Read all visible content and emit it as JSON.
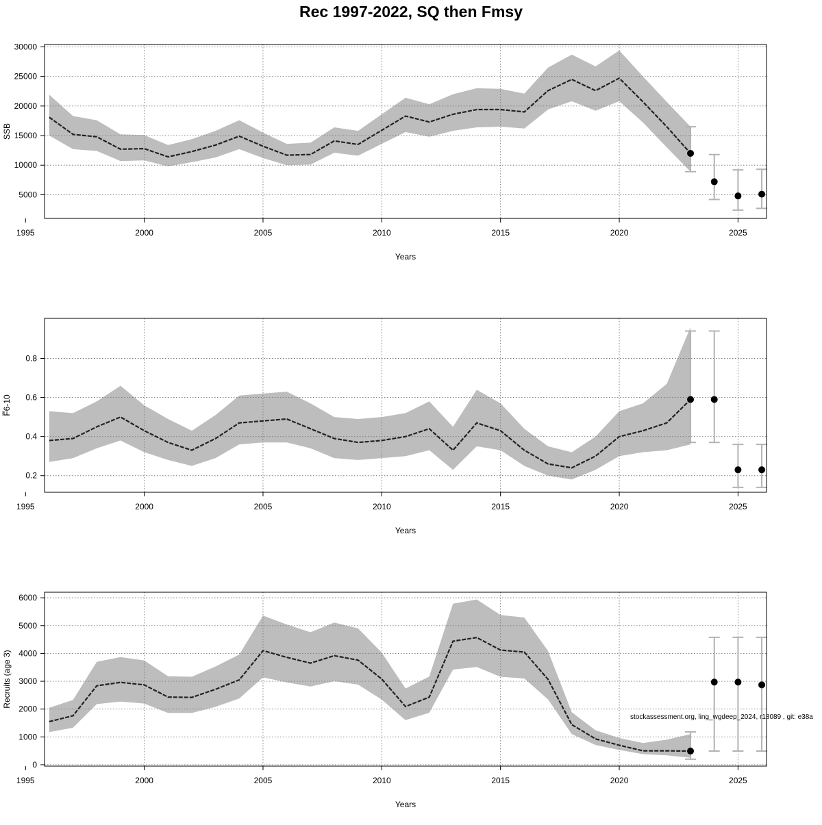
{
  "title": "Rec 1997-2022, SQ then Fmsy",
  "footnote": "stockassessment.org, ling_wgdeep_2024, r18089 , git: e38a",
  "colors": {
    "band": "#bdbdbd",
    "line": "#222222",
    "errorbar": "#b3b3b3",
    "point": "#000000",
    "grid": "#777777"
  },
  "chart_data": [
    {
      "type": "line",
      "ylabel": "SSB",
      "xlabel": "Years",
      "xlim": [
        1995.8,
        2026.2
      ],
      "ylim": [
        1000,
        30400
      ],
      "xticks": [
        1995,
        2000,
        2005,
        2010,
        2015,
        2020,
        2025
      ],
      "yticks": [
        5000,
        10000,
        15000,
        20000,
        25000,
        30000
      ],
      "grid": true,
      "x": [
        1996,
        1997,
        1998,
        1999,
        2000,
        2001,
        2002,
        2003,
        2004,
        2005,
        2006,
        2007,
        2008,
        2009,
        2010,
        2011,
        2012,
        2013,
        2014,
        2015,
        2016,
        2017,
        2018,
        2019,
        2020,
        2021,
        2022,
        2023
      ],
      "estimate": [
        18100,
        15200,
        14800,
        12700,
        12800,
        11400,
        12300,
        13400,
        14900,
        13200,
        11700,
        11800,
        14100,
        13500,
        15900,
        18300,
        17300,
        18600,
        19400,
        19400,
        19000,
        22600,
        24500,
        22600,
        24700,
        20700,
        16500,
        12000
      ],
      "lower": [
        15000,
        12700,
        12400,
        10700,
        10800,
        9800,
        10500,
        11300,
        12700,
        11200,
        10000,
        10100,
        12100,
        11600,
        13600,
        15600,
        14800,
        15800,
        16400,
        16500,
        16200,
        19400,
        20800,
        19200,
        20800,
        17200,
        13000,
        8900
      ],
      "upper": [
        21900,
        18300,
        17600,
        15200,
        15100,
        13400,
        14400,
        15800,
        17600,
        15500,
        13600,
        13800,
        16400,
        15800,
        18600,
        21400,
        20300,
        22000,
        23000,
        22900,
        22100,
        26500,
        28700,
        26700,
        29400,
        25000,
        20700,
        16500
      ],
      "forecast": {
        "x": [
          2023,
          2024,
          2025,
          2026
        ],
        "median": [
          12000,
          7200,
          4800,
          5100
        ],
        "low": [
          8900,
          4200,
          2400,
          2700
        ],
        "high": [
          16500,
          11800,
          9200,
          9300
        ]
      }
    },
    {
      "type": "line",
      "ylabel": "F̅6-10",
      "xlabel": "Years",
      "xlim": [
        1995.8,
        2026.2
      ],
      "ylim": [
        0.115,
        1.005
      ],
      "xticks": [
        1995,
        2000,
        2005,
        2010,
        2015,
        2020,
        2025
      ],
      "yticks": [
        0.2,
        0.4,
        0.6,
        0.8
      ],
      "grid": true,
      "x": [
        1996,
        1997,
        1998,
        1999,
        2000,
        2001,
        2002,
        2003,
        2004,
        2005,
        2006,
        2007,
        2008,
        2009,
        2010,
        2011,
        2012,
        2013,
        2014,
        2015,
        2016,
        2017,
        2018,
        2019,
        2020,
        2021,
        2022,
        2023
      ],
      "estimate": [
        0.38,
        0.39,
        0.45,
        0.5,
        0.43,
        0.37,
        0.33,
        0.39,
        0.47,
        0.48,
        0.49,
        0.44,
        0.39,
        0.37,
        0.38,
        0.4,
        0.44,
        0.33,
        0.47,
        0.43,
        0.33,
        0.26,
        0.24,
        0.3,
        0.4,
        0.43,
        0.47,
        0.59
      ],
      "lower": [
        0.27,
        0.29,
        0.34,
        0.38,
        0.32,
        0.28,
        0.25,
        0.29,
        0.36,
        0.37,
        0.37,
        0.34,
        0.29,
        0.28,
        0.29,
        0.3,
        0.33,
        0.23,
        0.35,
        0.33,
        0.25,
        0.2,
        0.18,
        0.23,
        0.3,
        0.32,
        0.33,
        0.36
      ],
      "upper": [
        0.53,
        0.52,
        0.58,
        0.66,
        0.56,
        0.49,
        0.43,
        0.51,
        0.61,
        0.62,
        0.63,
        0.57,
        0.5,
        0.49,
        0.5,
        0.52,
        0.58,
        0.45,
        0.64,
        0.57,
        0.44,
        0.35,
        0.32,
        0.4,
        0.53,
        0.57,
        0.67,
        0.96
      ],
      "forecast": {
        "x": [
          2023,
          2024,
          2025,
          2026
        ],
        "median": [
          0.59,
          0.59,
          0.23,
          0.23
        ],
        "low": [
          0.37,
          0.37,
          0.14,
          0.14
        ],
        "high": [
          0.94,
          0.94,
          0.36,
          0.36
        ]
      }
    },
    {
      "type": "line",
      "ylabel": "Recruits (age 3)",
      "xlabel": "Years",
      "xlim": [
        1995.8,
        2026.2
      ],
      "ylim": [
        -50,
        6200
      ],
      "xticks": [
        1995,
        2000,
        2005,
        2010,
        2015,
        2020,
        2025
      ],
      "yticks": [
        0,
        1000,
        2000,
        3000,
        4000,
        5000,
        6000
      ],
      "grid": true,
      "x": [
        1996,
        1997,
        1998,
        1999,
        2000,
        2001,
        2002,
        2003,
        2004,
        2005,
        2006,
        2007,
        2008,
        2009,
        2010,
        2011,
        2012,
        2013,
        2014,
        2015,
        2016,
        2017,
        2018,
        2019,
        2020,
        2021,
        2022,
        2023
      ],
      "estimate": [
        1550,
        1760,
        2840,
        2960,
        2870,
        2430,
        2420,
        2710,
        3050,
        4100,
        3860,
        3650,
        3920,
        3760,
        3080,
        2090,
        2430,
        4440,
        4570,
        4120,
        4050,
        3070,
        1440,
        930,
        700,
        500,
        500,
        490
      ],
      "lower": [
        1170,
        1330,
        2180,
        2270,
        2200,
        1860,
        1860,
        2080,
        2380,
        3140,
        2960,
        2810,
        3000,
        2880,
        2340,
        1600,
        1870,
        3420,
        3510,
        3160,
        3100,
        2350,
        1100,
        710,
        530,
        380,
        340,
        250
      ],
      "upper": [
        2050,
        2330,
        3700,
        3870,
        3750,
        3180,
        3160,
        3530,
        3960,
        5360,
        5040,
        4760,
        5110,
        4900,
        4030,
        2740,
        3170,
        5790,
        5940,
        5380,
        5290,
        4090,
        1890,
        1240,
        960,
        780,
        900,
        1100
      ],
      "forecast": {
        "x": [
          2023,
          2024,
          2025,
          2026
        ],
        "median": [
          490,
          2970,
          2970,
          2870
        ],
        "low": [
          200,
          490,
          490,
          490
        ],
        "high": [
          1180,
          4580,
          4580,
          4580
        ]
      }
    }
  ]
}
